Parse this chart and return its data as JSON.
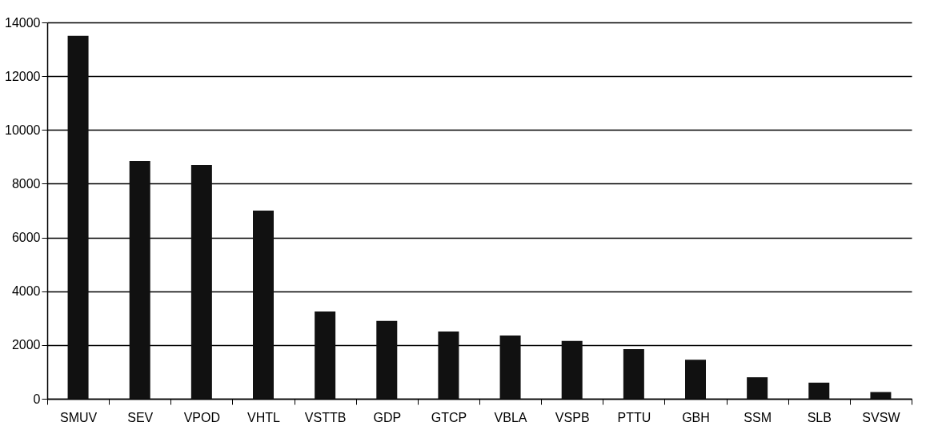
{
  "chart_data": {
    "type": "bar",
    "categories": [
      "SMUV",
      "SEV",
      "VPOD",
      "VHTL",
      "VSTTB",
      "GDP",
      "GTCP",
      "VBLA",
      "VSPB",
      "PTTU",
      "GBH",
      "SSM",
      "SLB",
      "SVSW"
    ],
    "values": [
      13500,
      8850,
      8700,
      7000,
      3250,
      2900,
      2500,
      2350,
      2150,
      1850,
      1450,
      800,
      600,
      250
    ],
    "color": "#111111",
    "ylim": [
      0,
      14000
    ],
    "yticks": [
      0,
      2000,
      4000,
      6000,
      8000,
      10000,
      12000,
      14000
    ],
    "grid": "y"
  }
}
